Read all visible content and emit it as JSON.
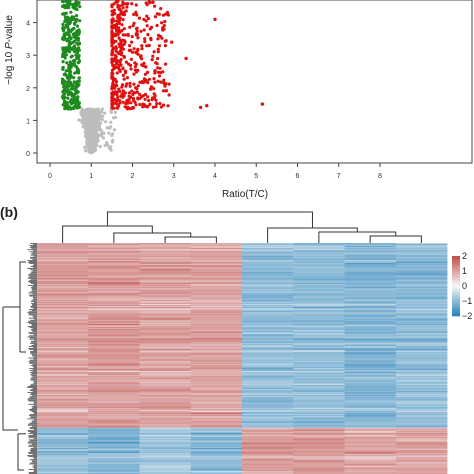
{
  "panel_labels": {
    "b": "(b)"
  },
  "chart_data": [
    {
      "type": "scatter",
      "panel": "a",
      "xlabel": "Ratio(T/C)",
      "ylabel_prefix": "−log 10 ",
      "ylabel_italic": "P",
      "ylabel_suffix": "-value",
      "xlim": [
        0,
        9
      ],
      "ylim": [
        0,
        5
      ],
      "x_ticks": [
        "0",
        "1",
        "2",
        "3",
        "4",
        "5",
        "6",
        "7",
        "8"
      ],
      "y_ticks": [
        "0",
        "1",
        "2",
        "3",
        "4"
      ],
      "grid": false,
      "colors": {
        "down": "#1f8a1f",
        "up": "#e01010",
        "ns": "#bdbdbd"
      },
      "series": [
        {
          "group": "down",
          "color": "#1f8a1f",
          "x_range": [
            0.3,
            0.72
          ],
          "y_range": [
            1.35,
            5.0
          ],
          "count": 380
        },
        {
          "group": "up",
          "color": "#e01010",
          "x_range": [
            1.2,
            2.7
          ],
          "y_range": [
            1.35,
            5.0
          ],
          "count": 520
        },
        {
          "group": "ns",
          "color": "#bdbdbd",
          "x_range": [
            0.55,
            1.45
          ],
          "y_range": [
            0.0,
            1.35
          ],
          "count": 650
        }
      ],
      "outliers": [
        {
          "x": 4.0,
          "y": 4.1
        },
        {
          "x": 3.8,
          "y": 1.45
        },
        {
          "x": 3.65,
          "y": 1.4
        },
        {
          "x": 5.15,
          "y": 1.5
        },
        {
          "x": 2.95,
          "y": 3.4
        },
        {
          "x": 3.3,
          "y": 2.9
        }
      ]
    },
    {
      "type": "heatmap",
      "panel": "b",
      "columns": 8,
      "rows": 220,
      "color_scale": {
        "min": -2,
        "max": 2,
        "low": "#2b83ba",
        "mid": "#f7f7f7",
        "high": "#c0504d"
      },
      "legend_ticks": [
        "2",
        "1",
        "0",
        "−1",
        "−2"
      ],
      "blocks": [
        {
          "rows_fraction": 0.8,
          "mean_by_column": [
            1.0,
            1.1,
            1.0,
            1.0,
            -1.0,
            -1.0,
            -1.1,
            -1.0
          ]
        },
        {
          "rows_fraction": 0.2,
          "mean_by_column": [
            -0.9,
            -1.1,
            -0.8,
            -1.0,
            1.0,
            1.1,
            0.9,
            1.0
          ]
        }
      ],
      "column_dendrogram": "two-cluster",
      "row_dendrogram": "two-cluster"
    }
  ]
}
